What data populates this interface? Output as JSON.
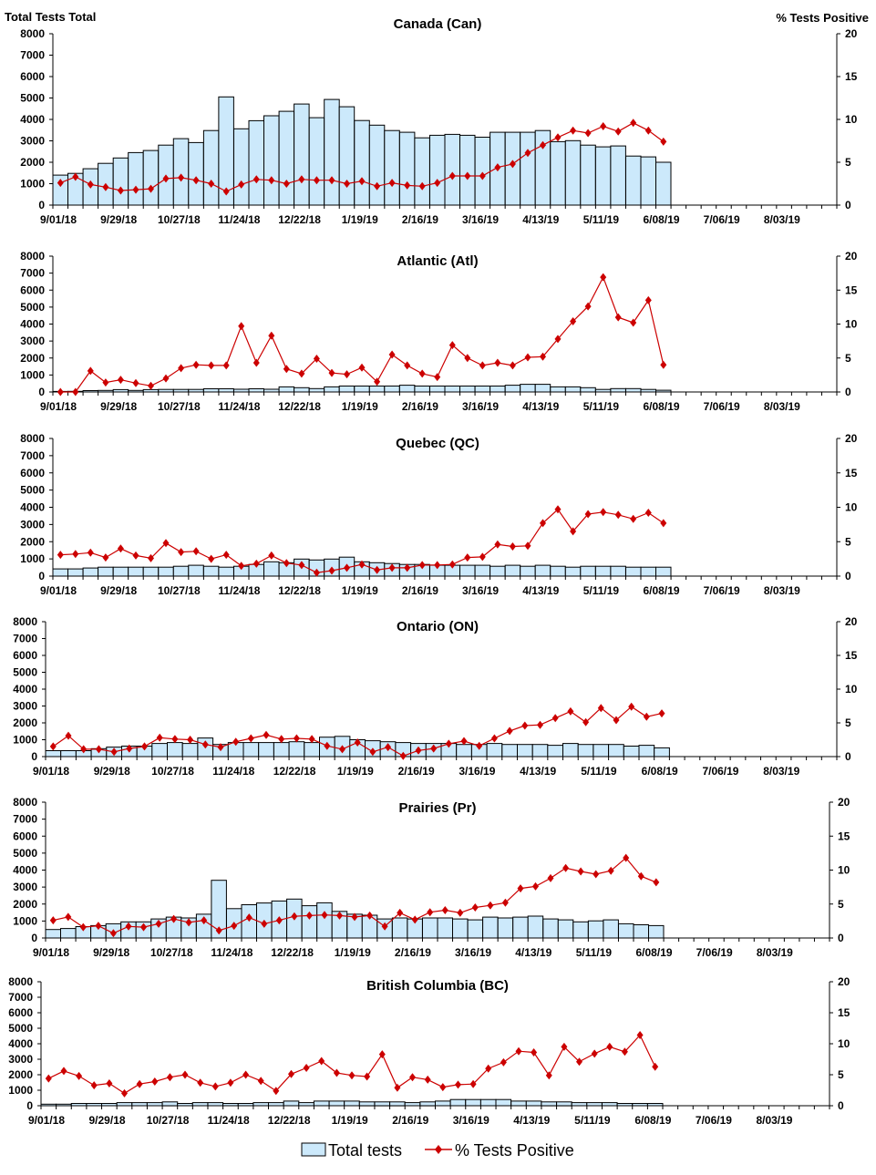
{
  "chart_data": {
    "type": "bar+line",
    "left_axis_title": "Total Tests Total",
    "right_axis_title": "% Tests Positive",
    "left_ylim": [
      0,
      8000
    ],
    "left_yticks": [
      "0",
      "1000",
      "2000",
      "3000",
      "4000",
      "5000",
      "6000",
      "7000",
      "8000"
    ],
    "right_ylim": [
      0,
      20
    ],
    "right_yticks": [
      "0",
      "5",
      "10",
      "15",
      "20"
    ],
    "x_range": [
      "9/01/18",
      "8/31/19"
    ],
    "x_interval": "weekly",
    "x_tick_labels": [
      "9/01/18",
      "9/29/18",
      "10/27/18",
      "11/24/18",
      "12/22/18",
      "1/19/19",
      "2/16/19",
      "3/16/19",
      "4/13/19",
      "5/11/19",
      "6/08/19",
      "7/06/19",
      "8/03/19"
    ],
    "legend": {
      "placement": "bottom",
      "bar_label": "Total tests",
      "line_label": "% Tests Positive"
    },
    "colors": {
      "bar_fill": "#cce9fb",
      "bar_stroke": "#000000",
      "line": "#cc0000"
    },
    "panels": [
      {
        "title": "Canada (Can)",
        "total_tests": [
          1400,
          1480,
          1700,
          1950,
          2200,
          2450,
          2550,
          2800,
          3100,
          2920,
          3480,
          5050,
          3560,
          3940,
          4170,
          4380,
          4720,
          4080,
          4930,
          4590,
          3950,
          3730,
          3480,
          3400,
          3140,
          3260,
          3300,
          3260,
          3170,
          3400,
          3400,
          3400,
          3480,
          2960,
          3010,
          2800,
          2720,
          2760,
          2290,
          2250,
          2000
        ],
        "pct_positive": [
          2.6,
          3.3,
          2.4,
          2.1,
          1.7,
          1.8,
          1.9,
          3.1,
          3.2,
          2.9,
          2.5,
          1.6,
          2.4,
          3.0,
          2.9,
          2.5,
          3.0,
          2.9,
          2.9,
          2.5,
          2.8,
          2.2,
          2.6,
          2.3,
          2.2,
          2.6,
          3.4,
          3.4,
          3.4,
          4.4,
          4.8,
          6.1,
          7.0,
          7.9,
          8.7,
          8.4,
          9.2,
          8.6,
          9.6,
          8.7,
          7.4
        ]
      },
      {
        "title": "Atlantic (Atl)",
        "total_tests": [
          30,
          40,
          80,
          90,
          140,
          90,
          140,
          150,
          150,
          150,
          190,
          190,
          160,
          190,
          160,
          300,
          250,
          200,
          300,
          350,
          350,
          350,
          350,
          400,
          350,
          350,
          350,
          350,
          350,
          350,
          400,
          450,
          450,
          300,
          300,
          250,
          150,
          200,
          200,
          150,
          100
        ],
        "pct_positive": [
          0,
          0,
          3.1,
          1.4,
          1.8,
          1.3,
          0.9,
          2.0,
          3.5,
          4.0,
          3.9,
          3.9,
          9.7,
          4.3,
          8.3,
          3.4,
          2.7,
          4.9,
          2.8,
          2.6,
          3.6,
          1.5,
          5.5,
          3.9,
          2.7,
          2.2,
          6.9,
          5.0,
          3.9,
          4.3,
          3.9,
          5.1,
          5.2,
          7.8,
          10.4,
          12.6,
          16.9,
          11.0,
          10.2,
          13.5,
          4.0
        ]
      },
      {
        "title": "Quebec (QC)",
        "total_tests": [
          420,
          420,
          470,
          520,
          520,
          520,
          520,
          520,
          570,
          630,
          570,
          520,
          570,
          680,
          830,
          780,
          990,
          940,
          990,
          1100,
          830,
          780,
          730,
          680,
          680,
          630,
          630,
          630,
          630,
          570,
          630,
          570,
          630,
          570,
          520,
          570,
          570,
          570,
          520,
          520,
          520
        ],
        "pct_positive": [
          3.1,
          3.2,
          3.4,
          2.7,
          4.0,
          3.0,
          2.6,
          4.8,
          3.5,
          3.6,
          2.5,
          3.1,
          1.5,
          1.8,
          3.0,
          1.9,
          1.6,
          0.5,
          0.8,
          1.2,
          1.7,
          0.9,
          1.2,
          1.2,
          1.6,
          1.6,
          1.7,
          2.7,
          2.8,
          4.6,
          4.3,
          4.4,
          7.7,
          9.7,
          6.5,
          9.0,
          9.3,
          8.9,
          8.3,
          9.2,
          7.7
        ]
      },
      {
        "title": "Ontario (ON)",
        "total_tests": [
          350,
          350,
          350,
          470,
          560,
          620,
          620,
          780,
          830,
          780,
          1100,
          720,
          830,
          830,
          830,
          830,
          880,
          830,
          1150,
          1200,
          1000,
          940,
          880,
          830,
          780,
          780,
          780,
          720,
          720,
          780,
          720,
          720,
          720,
          670,
          780,
          720,
          720,
          720,
          620,
          670,
          520
        ],
        "pct_positive": [
          1.5,
          3.1,
          1.1,
          1.1,
          0.7,
          1.2,
          1.5,
          2.8,
          2.6,
          2.5,
          1.8,
          1.4,
          2.2,
          2.7,
          3.2,
          2.6,
          2.7,
          2.6,
          1.6,
          1.1,
          2.1,
          0.7,
          1.4,
          0.1,
          0.9,
          1.2,
          1.9,
          2.3,
          1.6,
          2.7,
          3.8,
          4.6,
          4.7,
          5.7,
          6.7,
          5.1,
          7.2,
          5.4,
          7.4,
          5.9,
          6.4
        ]
      },
      {
        "title": "Prairies (Pr)",
        "total_tests": [
          500,
          560,
          670,
          730,
          840,
          950,
          950,
          1120,
          1230,
          1180,
          1400,
          3400,
          1730,
          1960,
          2060,
          2180,
          2290,
          1900,
          2070,
          1570,
          1400,
          1340,
          1120,
          1180,
          1120,
          1180,
          1180,
          1120,
          1070,
          1230,
          1180,
          1230,
          1290,
          1120,
          1070,
          950,
          1010,
          1070,
          840,
          780,
          730
        ],
        "pct_positive": [
          2.6,
          3.1,
          1.6,
          1.8,
          0.7,
          1.7,
          1.6,
          2.1,
          2.8,
          2.3,
          2.6,
          1.1,
          1.8,
          3.0,
          2.1,
          2.6,
          3.2,
          3.3,
          3.4,
          3.3,
          3.1,
          3.3,
          1.7,
          3.7,
          2.7,
          3.8,
          4.1,
          3.7,
          4.5,
          4.8,
          5.2,
          7.3,
          7.6,
          8.8,
          10.3,
          9.8,
          9.4,
          9.9,
          11.8,
          9.1,
          8.2
        ]
      },
      {
        "title": "British Columbia (BC)",
        "total_tests": [
          100,
          100,
          150,
          150,
          150,
          200,
          200,
          200,
          250,
          150,
          200,
          200,
          150,
          150,
          200,
          200,
          300,
          200,
          300,
          300,
          300,
          250,
          250,
          250,
          200,
          250,
          300,
          400,
          400,
          400,
          400,
          300,
          300,
          250,
          250,
          200,
          200,
          200,
          150,
          150,
          150
        ],
        "pct_positive": [
          4.4,
          5.6,
          4.8,
          3.3,
          3.6,
          2.0,
          3.5,
          3.9,
          4.6,
          5.0,
          3.7,
          3.1,
          3.7,
          5.0,
          4.0,
          2.4,
          5.1,
          6.1,
          7.2,
          5.3,
          4.9,
          4.7,
          8.3,
          2.9,
          4.6,
          4.2,
          3.0,
          3.4,
          3.5,
          6.0,
          7.0,
          8.8,
          8.6,
          4.9,
          9.5,
          7.1,
          8.4,
          9.5,
          8.7,
          11.4,
          6.3
        ]
      }
    ]
  }
}
